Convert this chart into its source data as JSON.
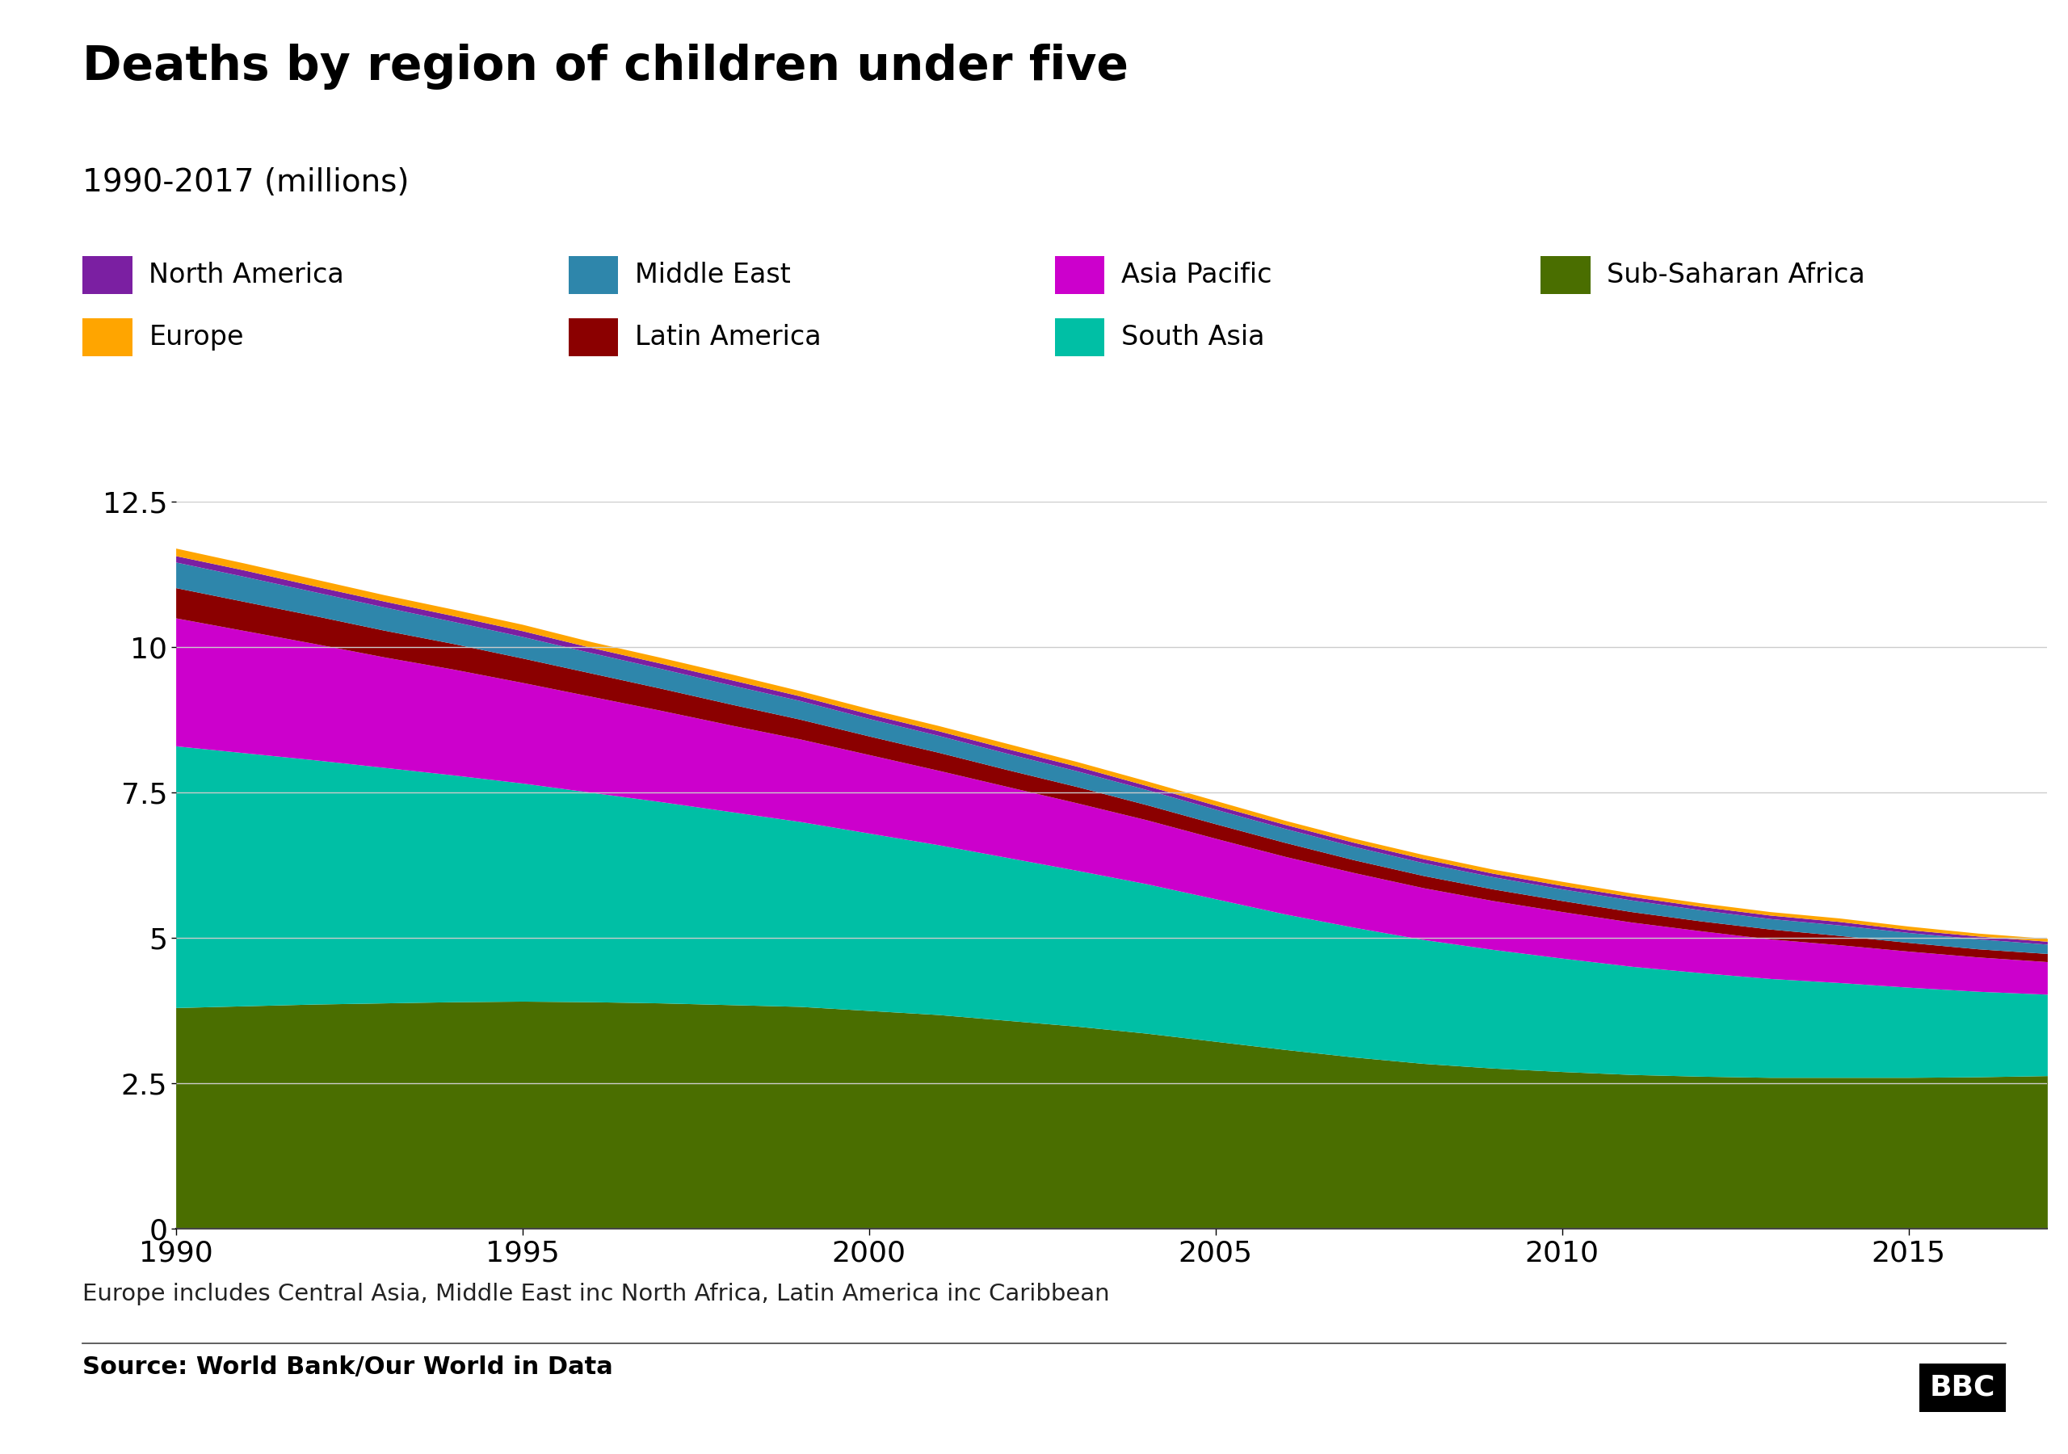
{
  "title": "Deaths by region of children under five",
  "subtitle": "1990-2017 (millions)",
  "footnote": "Europe includes Central Asia, Middle East inc North Africa, Latin America inc Caribbean",
  "source": "Source: World Bank/Our World in Data",
  "years": [
    1990,
    1991,
    1992,
    1993,
    1994,
    1995,
    1996,
    1997,
    1998,
    1999,
    2000,
    2001,
    2002,
    2003,
    2004,
    2005,
    2006,
    2007,
    2008,
    2009,
    2010,
    2011,
    2012,
    2013,
    2014,
    2015,
    2016,
    2017
  ],
  "regions": [
    {
      "name": "Sub-Saharan Africa",
      "color": "#4a6e00",
      "values": [
        3.8,
        3.83,
        3.86,
        3.88,
        3.9,
        3.91,
        3.9,
        3.88,
        3.85,
        3.82,
        3.75,
        3.68,
        3.58,
        3.48,
        3.36,
        3.22,
        3.08,
        2.95,
        2.84,
        2.76,
        2.7,
        2.65,
        2.62,
        2.6,
        2.6,
        2.6,
        2.61,
        2.63
      ]
    },
    {
      "name": "South Asia",
      "color": "#00BFA5",
      "values": [
        4.5,
        4.35,
        4.2,
        4.05,
        3.9,
        3.75,
        3.6,
        3.46,
        3.32,
        3.18,
        3.05,
        2.92,
        2.8,
        2.68,
        2.57,
        2.45,
        2.33,
        2.23,
        2.13,
        2.04,
        1.95,
        1.86,
        1.78,
        1.7,
        1.63,
        1.55,
        1.47,
        1.4
      ]
    },
    {
      "name": "Asia Pacific",
      "color": "#CC00CC",
      "values": [
        2.2,
        2.1,
        2.0,
        1.9,
        1.82,
        1.73,
        1.65,
        1.57,
        1.49,
        1.42,
        1.35,
        1.28,
        1.22,
        1.16,
        1.1,
        1.04,
        0.99,
        0.94,
        0.89,
        0.84,
        0.8,
        0.76,
        0.72,
        0.68,
        0.65,
        0.62,
        0.59,
        0.56
      ]
    },
    {
      "name": "Latin America",
      "color": "#8B0000",
      "values": [
        0.52,
        0.5,
        0.48,
        0.46,
        0.44,
        0.42,
        0.4,
        0.38,
        0.36,
        0.34,
        0.32,
        0.31,
        0.29,
        0.28,
        0.26,
        0.25,
        0.24,
        0.22,
        0.21,
        0.2,
        0.19,
        0.18,
        0.17,
        0.17,
        0.16,
        0.15,
        0.14,
        0.14
      ]
    },
    {
      "name": "Middle East",
      "color": "#2E86AB",
      "values": [
        0.44,
        0.43,
        0.41,
        0.4,
        0.38,
        0.37,
        0.35,
        0.34,
        0.33,
        0.32,
        0.3,
        0.29,
        0.28,
        0.27,
        0.26,
        0.25,
        0.24,
        0.23,
        0.22,
        0.21,
        0.2,
        0.2,
        0.19,
        0.18,
        0.18,
        0.17,
        0.17,
        0.16
      ]
    },
    {
      "name": "North America",
      "color": "#7B1FA2",
      "values": [
        0.11,
        0.11,
        0.1,
        0.1,
        0.1,
        0.1,
        0.09,
        0.09,
        0.09,
        0.08,
        0.08,
        0.08,
        0.08,
        0.08,
        0.07,
        0.07,
        0.07,
        0.07,
        0.07,
        0.06,
        0.06,
        0.06,
        0.06,
        0.06,
        0.06,
        0.05,
        0.05,
        0.05
      ]
    },
    {
      "name": "Europe",
      "color": "#FFA500",
      "values": [
        0.13,
        0.12,
        0.12,
        0.11,
        0.11,
        0.11,
        0.1,
        0.1,
        0.1,
        0.09,
        0.09,
        0.09,
        0.09,
        0.08,
        0.08,
        0.08,
        0.07,
        0.07,
        0.07,
        0.07,
        0.07,
        0.06,
        0.06,
        0.06,
        0.06,
        0.06,
        0.05,
        0.05
      ]
    }
  ],
  "ylim": [
    0,
    12.5
  ],
  "ytick_labels": [
    "0",
    "2.5",
    "5",
    "7.5",
    "10",
    "12.5"
  ],
  "ytick_vals": [
    0,
    2.5,
    5.0,
    7.5,
    10.0,
    12.5
  ],
  "xtick_vals": [
    1990,
    1995,
    2000,
    2005,
    2010,
    2015
  ],
  "xtick_labels": [
    "1990",
    "1995",
    "2000",
    "2005",
    "2010",
    "2015"
  ],
  "background_color": "#ffffff",
  "grid_color": "#cccccc",
  "title_fontsize": 42,
  "subtitle_fontsize": 28,
  "tick_fontsize": 26,
  "legend_fontsize": 24,
  "footnote_fontsize": 21,
  "source_fontsize": 22,
  "legend_row1": [
    [
      "North America",
      "#7B1FA2"
    ],
    [
      "Middle East",
      "#2E86AB"
    ],
    [
      "Asia Pacific",
      "#CC00CC"
    ],
    [
      "Sub-Saharan Africa",
      "#4a6e00"
    ]
  ],
  "legend_row2": [
    [
      "Europe",
      "#FFA500"
    ],
    [
      "Latin America",
      "#8B0000"
    ],
    [
      "South Asia",
      "#00BFA5"
    ]
  ]
}
